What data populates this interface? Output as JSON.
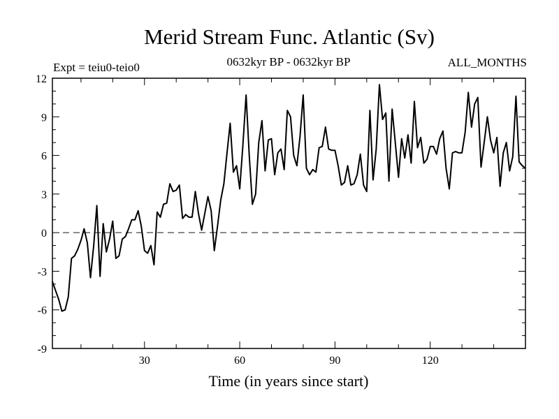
{
  "chart_data": {
    "type": "line",
    "title": "Merid Stream Func. Atlantic (Sv)",
    "subtitle_left": "Expt = teiu0-teio0",
    "subtitle_center": "0632kyr BP - 0632kyr BP",
    "subtitle_right": "ALL_MONTHS",
    "xlabel": "Time (in years since start)",
    "ylabel": "",
    "xlim": [
      1,
      150
    ],
    "ylim": [
      -9,
      12
    ],
    "xticks": [
      30,
      60,
      90,
      120
    ],
    "xtick_labels": [
      "30",
      "60",
      "90",
      "120"
    ],
    "yticks": [
      -9,
      -6,
      -3,
      0,
      3,
      6,
      9,
      12
    ],
    "ytick_labels": [
      "-9",
      "-6",
      "-3",
      "0",
      "3",
      "6",
      "9",
      "12"
    ],
    "reference_line": 0,
    "grid": false,
    "series": [
      {
        "name": "teiu0-teio0",
        "x": [
          1,
          2,
          3,
          4,
          5,
          6,
          7,
          8,
          9,
          10,
          11,
          12,
          13,
          14,
          15,
          16,
          17,
          18,
          19,
          20,
          21,
          22,
          23,
          24,
          25,
          26,
          27,
          28,
          29,
          30,
          31,
          32,
          33,
          34,
          35,
          36,
          37,
          38,
          39,
          40,
          41,
          42,
          43,
          44,
          45,
          46,
          47,
          48,
          49,
          50,
          51,
          52,
          53,
          54,
          55,
          56,
          57,
          58,
          59,
          60,
          61,
          62,
          63,
          64,
          65,
          66,
          67,
          68,
          69,
          70,
          71,
          72,
          73,
          74,
          75,
          76,
          77,
          78,
          79,
          80,
          81,
          82,
          83,
          84,
          85,
          86,
          87,
          88,
          89,
          90,
          91,
          92,
          93,
          94,
          95,
          96,
          97,
          98,
          99,
          100,
          101,
          102,
          103,
          104,
          105,
          106,
          107,
          108,
          109,
          110,
          111,
          112,
          113,
          114,
          115,
          116,
          117,
          118,
          119,
          120,
          121,
          122,
          123,
          124,
          125,
          126,
          127,
          128,
          129,
          130,
          131,
          132,
          133,
          134,
          135,
          136,
          137,
          138,
          139,
          140,
          141,
          142,
          143,
          144,
          145,
          146,
          147,
          148,
          149,
          150
        ],
        "values": [
          -3.8,
          -4.5,
          -5.2,
          -6.1,
          -6.0,
          -5.0,
          -2.0,
          -1.8,
          -1.3,
          -0.6,
          0.3,
          -0.8,
          -3.5,
          -1.0,
          2.1,
          -3.4,
          0.7,
          -1.5,
          -0.5,
          0.9,
          -2.0,
          -1.8,
          -0.5,
          -0.3,
          0.3,
          1.0,
          1.0,
          1.7,
          0.5,
          -1.4,
          -1.6,
          -1.0,
          -2.5,
          1.6,
          1.2,
          2.2,
          2.3,
          3.8,
          3.2,
          3.3,
          3.7,
          1.1,
          1.4,
          1.2,
          1.2,
          3.2,
          1.5,
          0.2,
          1.5,
          2.8,
          1.7,
          -1.4,
          0.5,
          2.5,
          3.8,
          6.2,
          8.5,
          4.7,
          5.2,
          3.4,
          6.8,
          10.7,
          6.0,
          2.2,
          3.0,
          7.0,
          8.7,
          4.8,
          7.2,
          7.3,
          4.5,
          6.2,
          6.5,
          4.9,
          9.5,
          9.0,
          6.0,
          5.2,
          7.5,
          10.7,
          5.0,
          4.5,
          4.9,
          4.7,
          6.6,
          6.7,
          8.2,
          6.5,
          6.4,
          6.4,
          5.2,
          3.7,
          3.9,
          5.2,
          3.7,
          3.8,
          4.5,
          6.1,
          3.7,
          3.2,
          9.5,
          4.1,
          6.5,
          11.5,
          8.8,
          9.3,
          4.0,
          9.6,
          7.0,
          4.3,
          7.3,
          5.8,
          7.6,
          5.4,
          10.2,
          6.6,
          7.4,
          5.4,
          5.7,
          6.7,
          6.7,
          6.1,
          7.3,
          7.9,
          5.0,
          3.4,
          6.2,
          6.3,
          6.2,
          6.2,
          7.8,
          10.9,
          8.2,
          10.0,
          10.5,
          5.1,
          7.0,
          9.0,
          7.2,
          6.2,
          7.4,
          3.6,
          6.2,
          7.0,
          4.8,
          5.9,
          10.6,
          5.5,
          5.2,
          5.0
        ]
      }
    ]
  }
}
